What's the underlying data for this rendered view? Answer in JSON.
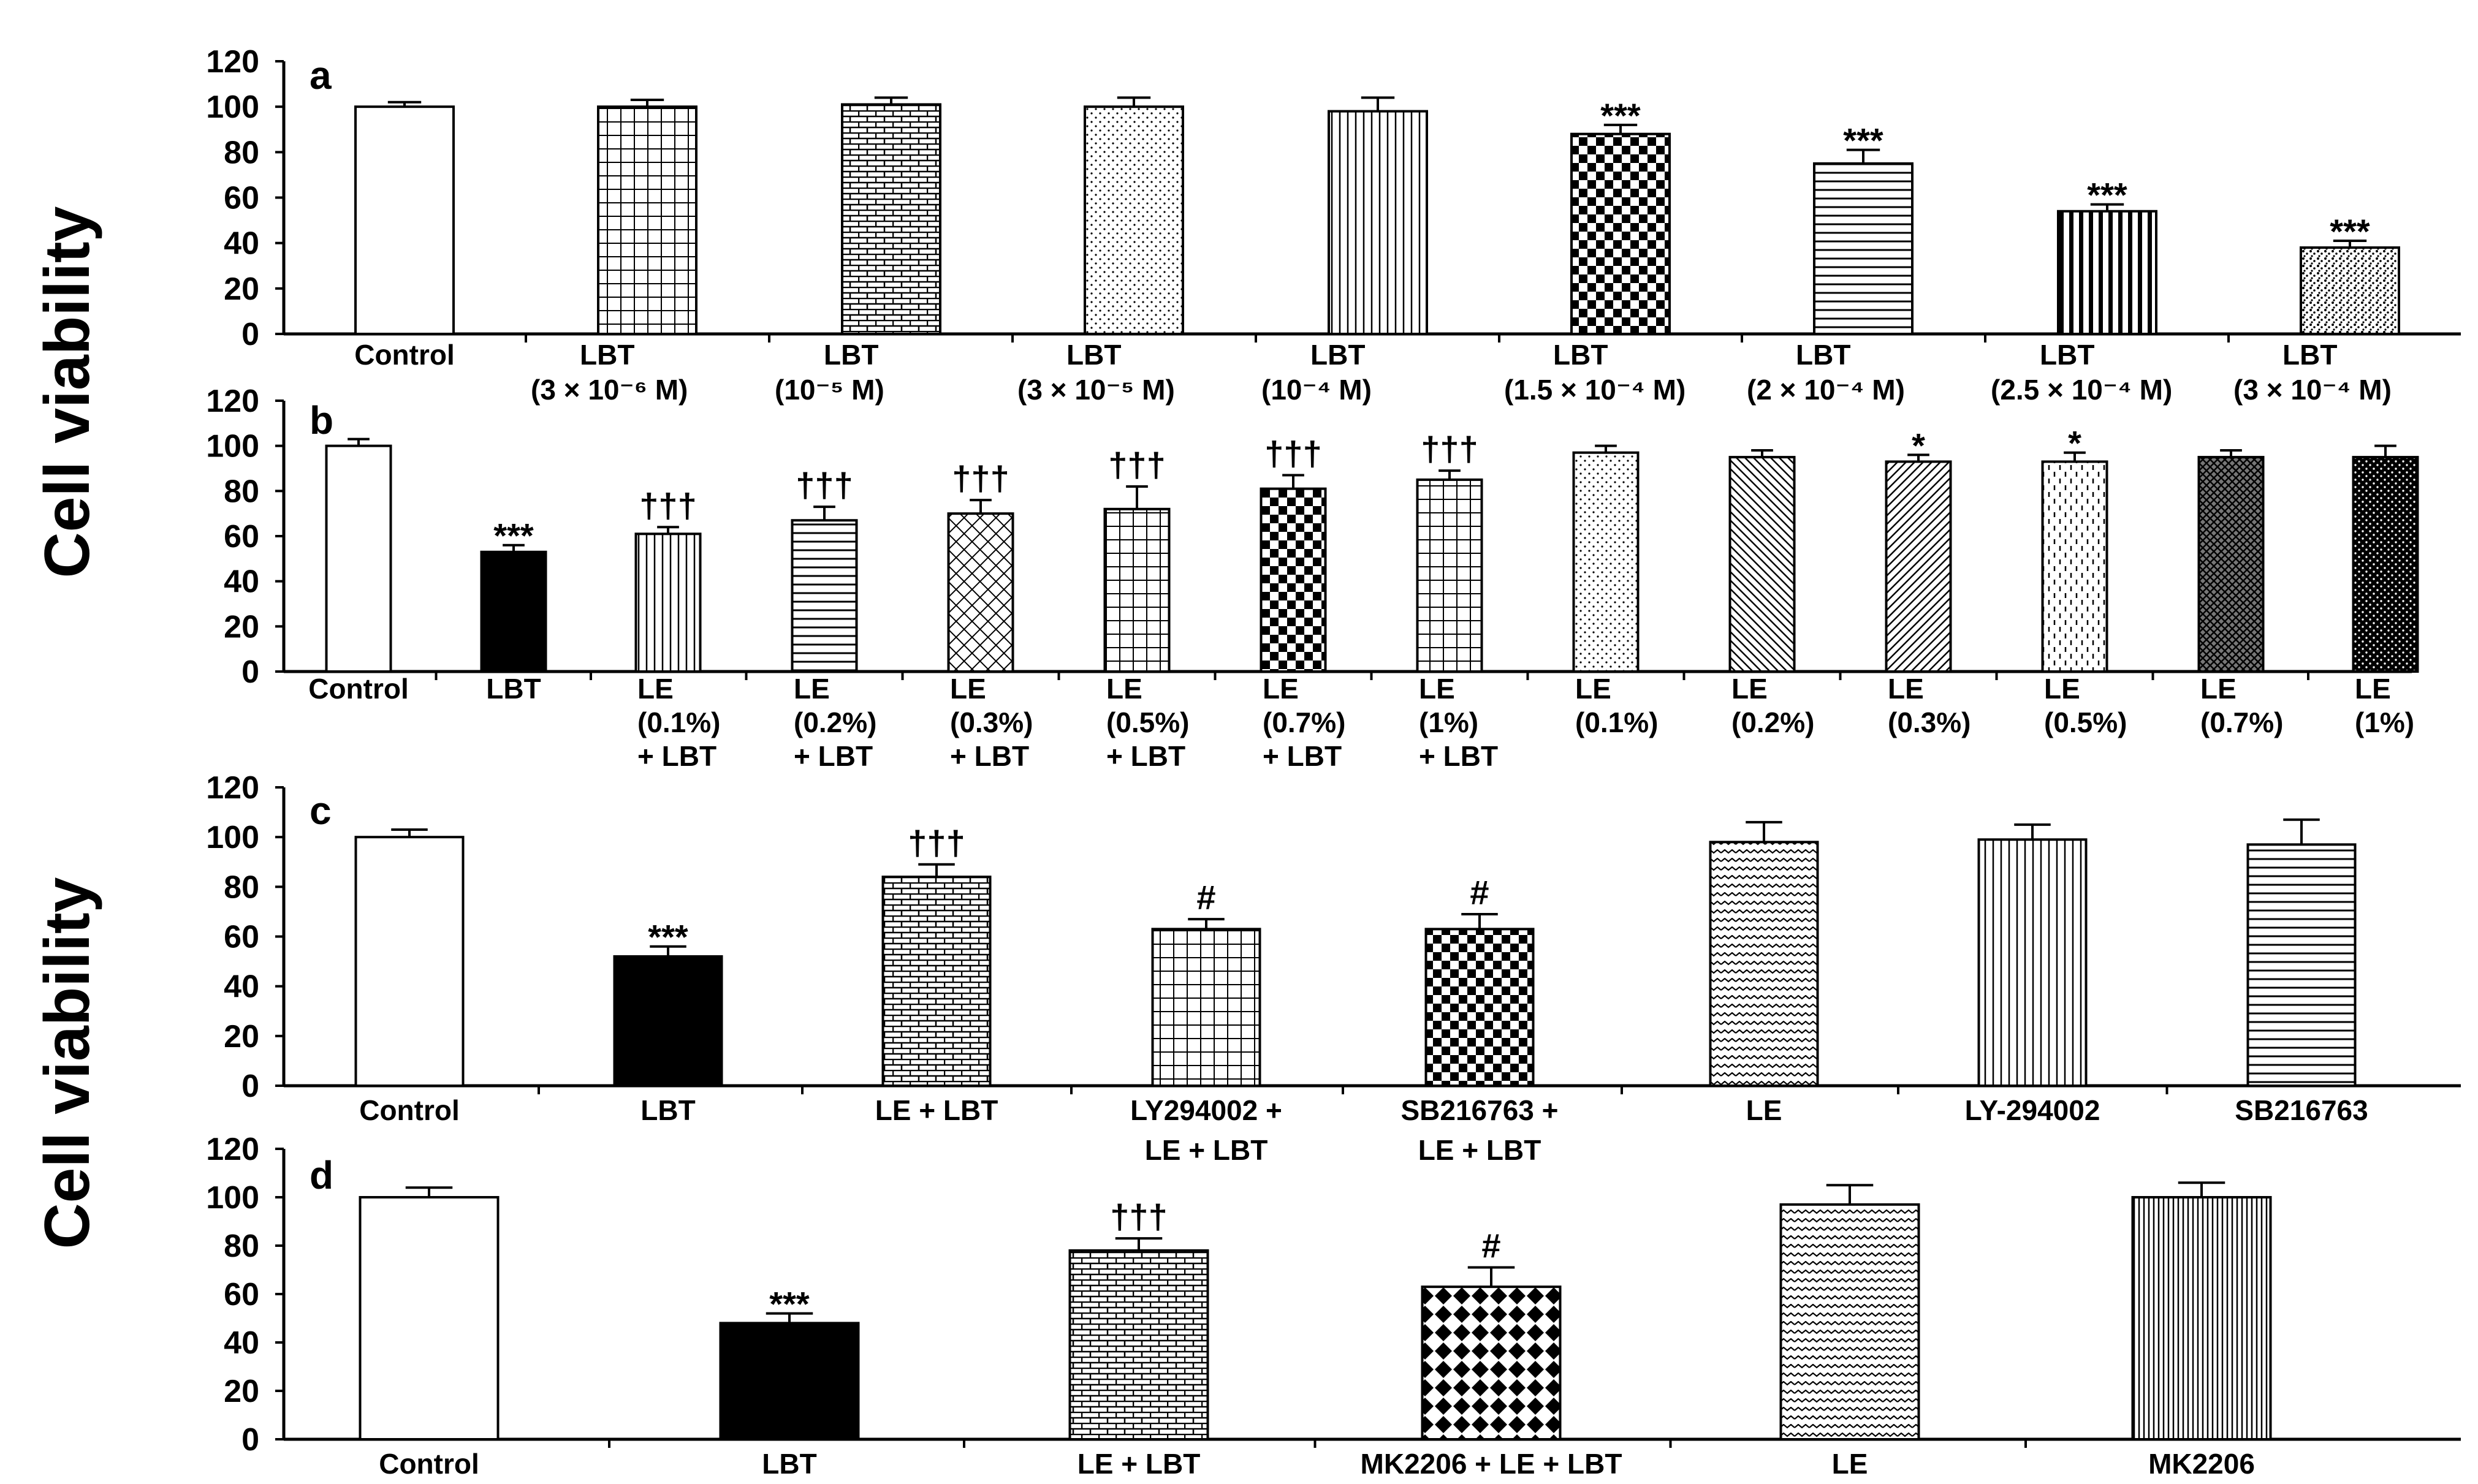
{
  "ylabels": [
    "Cell viability",
    "Cell viability"
  ],
  "chart_data": [
    {
      "type": "bar",
      "panel": "a",
      "ylabel": "Cell viability",
      "ylim": [
        0,
        120
      ],
      "yticks": [
        0,
        20,
        40,
        60,
        80,
        100,
        120
      ],
      "categories": [
        [
          "Control"
        ],
        [
          "LBT",
          "(3 × 10⁻⁶ M)"
        ],
        [
          "LBT",
          "(10⁻⁵ M)"
        ],
        [
          "LBT",
          "(3 × 10⁻⁵ M)"
        ],
        [
          "LBT",
          "(10⁻⁴ M)"
        ],
        [
          "LBT",
          "(1.5 × 10⁻⁴ M)"
        ],
        [
          "LBT",
          "(2 × 10⁻⁴ M)"
        ],
        [
          "LBT",
          "(2.5 × 10⁻⁴ M)"
        ],
        [
          "LBT",
          "(3 × 10⁻⁴ M)"
        ]
      ],
      "values": [
        100,
        100,
        101,
        100,
        98,
        88,
        75,
        54,
        38
      ],
      "errors": [
        2,
        3,
        3,
        4,
        6,
        4,
        6,
        3,
        3
      ],
      "significance": [
        "",
        "",
        "",
        "",
        "",
        "***",
        "***",
        "***",
        "***"
      ],
      "patterns": [
        "white",
        "grid",
        "brick",
        "dots",
        "vlines",
        "checker",
        "hlines",
        "vthick",
        "speckle"
      ]
    },
    {
      "type": "bar",
      "panel": "b",
      "ylabel": "Cell viability",
      "ylim": [
        0,
        120
      ],
      "yticks": [
        0,
        20,
        40,
        60,
        80,
        100,
        120
      ],
      "categories": [
        [
          "Control"
        ],
        [
          "LBT"
        ],
        [
          "LE",
          "(0.1%)",
          "+ LBT"
        ],
        [
          "LE",
          "(0.2%)",
          "+ LBT"
        ],
        [
          "LE",
          "(0.3%)",
          "+ LBT"
        ],
        [
          "LE",
          "(0.5%)",
          "+ LBT"
        ],
        [
          "LE",
          "(0.7%)",
          "+ LBT"
        ],
        [
          "LE",
          "(1%)",
          "+ LBT"
        ],
        [
          "LE",
          "(0.1%)"
        ],
        [
          "LE",
          "(0.2%)"
        ],
        [
          "LE",
          "(0.3%)"
        ],
        [
          "LE",
          "(0.5%)"
        ],
        [
          "LE",
          "(0.7%)"
        ],
        [
          "LE",
          "(1%)"
        ]
      ],
      "values": [
        100,
        53,
        61,
        67,
        70,
        72,
        81,
        85,
        97,
        95,
        93,
        93,
        95,
        95
      ],
      "errors": [
        3,
        3,
        3,
        6,
        6,
        10,
        6,
        4,
        3,
        3,
        3,
        4,
        3,
        5
      ],
      "significance": [
        "",
        "***",
        "†††",
        "†††",
        "†††",
        "†††",
        "†††",
        "†††",
        "",
        "",
        "*",
        "*",
        "",
        ""
      ],
      "patterns": [
        "white",
        "black",
        "vlines",
        "hlines",
        "diamond",
        "grid",
        "checker",
        "grid",
        "dots",
        "ddown",
        "dup",
        "dashv",
        "crosshatch",
        "blackdots"
      ]
    },
    {
      "type": "bar",
      "panel": "c",
      "ylabel": "Cell viability",
      "ylim": [
        0,
        120
      ],
      "yticks": [
        0,
        20,
        40,
        60,
        80,
        100,
        120
      ],
      "categories": [
        [
          "Control"
        ],
        [
          "LBT"
        ],
        [
          "LE + LBT"
        ],
        [
          "LY294002 +",
          "LE + LBT"
        ],
        [
          "SB216763 +",
          "LE + LBT"
        ],
        [
          "LE"
        ],
        [
          "LY-294002"
        ],
        [
          "SB216763"
        ]
      ],
      "values": [
        100,
        52,
        84,
        63,
        63,
        98,
        99,
        97
      ],
      "errors": [
        3,
        4,
        5,
        4,
        6,
        8,
        6,
        10
      ],
      "significance": [
        "",
        "***",
        "†††",
        "#",
        "#",
        "",
        "",
        ""
      ],
      "patterns": [
        "white",
        "black",
        "brick",
        "grid",
        "checker",
        "wave",
        "vlines",
        "hlines"
      ]
    },
    {
      "type": "bar",
      "panel": "d",
      "ylabel": "Cell viability",
      "ylim": [
        0,
        120
      ],
      "yticks": [
        0,
        20,
        40,
        60,
        80,
        100,
        120
      ],
      "categories": [
        [
          "Control"
        ],
        [
          "LBT"
        ],
        [
          "LE + LBT"
        ],
        [
          "MK2206 +  LE + LBT"
        ],
        [
          "LE"
        ],
        [
          "MK2206"
        ]
      ],
      "values": [
        100,
        48,
        78,
        63,
        97,
        100
      ],
      "errors": [
        4,
        4,
        5,
        8,
        8,
        6
      ],
      "significance": [
        "",
        "***",
        "†††",
        "#",
        "",
        ""
      ],
      "patterns": [
        "white",
        "black",
        "brick",
        "diamondblack",
        "wave",
        "vlinesdense"
      ]
    }
  ]
}
